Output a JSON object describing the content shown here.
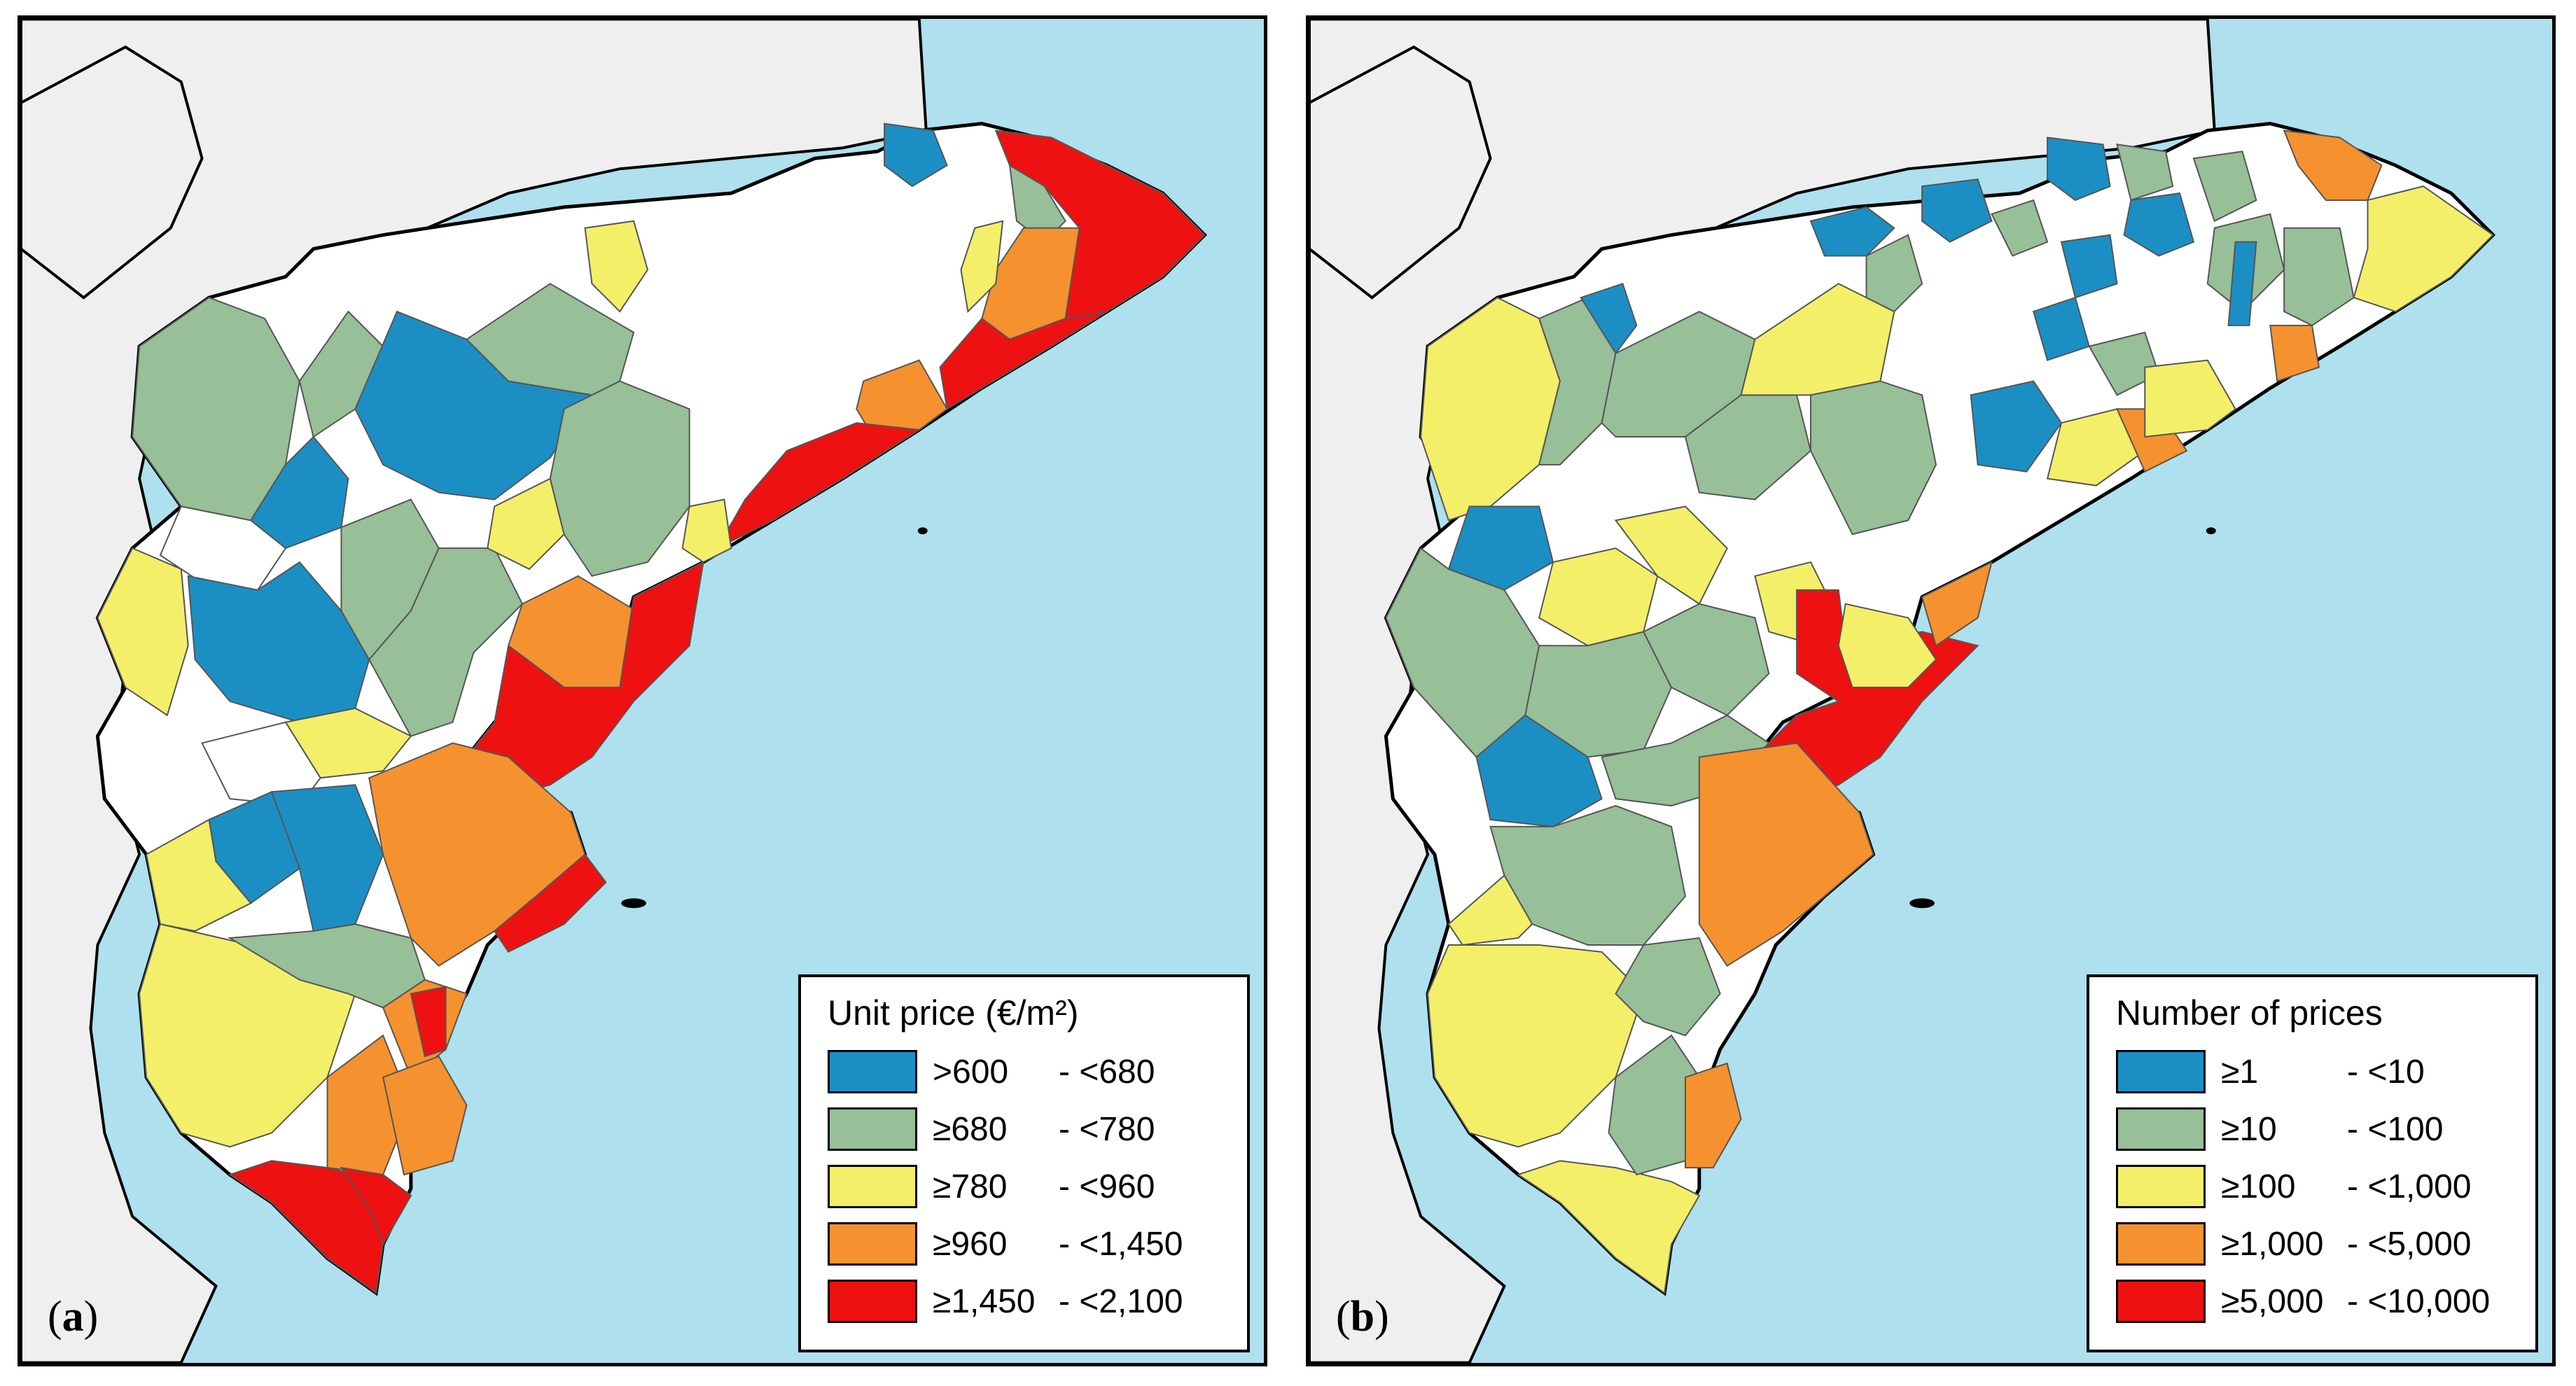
{
  "colors": {
    "sea": "#aee0ee",
    "neighbor": "#efefef",
    "nodata": "#ffffff",
    "border": "#000000"
  },
  "panels": [
    {
      "id": "a",
      "label_letter": "a",
      "legend": {
        "title": "Unit price (€/m²)",
        "items": [
          {
            "low": ">600",
            "high": "- <680",
            "color": "#1b8fc4"
          },
          {
            "low": "≥680",
            "high": "- <780",
            "color": "#97bf98"
          },
          {
            "low": "≥780",
            "high": "- <960",
            "color": "#f3ef69"
          },
          {
            "low": "≥960",
            "high": "- <1,450",
            "color": "#f5922f"
          },
          {
            "low": "≥1,450",
            "high": "- <2,100",
            "color": "#ee1111"
          }
        ]
      }
    },
    {
      "id": "b",
      "label_letter": "b",
      "legend": {
        "title": "Number of prices",
        "items": [
          {
            "low": "≥1",
            "high": "- <10",
            "color": "#1b8fc4"
          },
          {
            "low": "≥10",
            "high": "- <100",
            "color": "#97bf98"
          },
          {
            "low": "≥100",
            "high": "- <1,000",
            "color": "#f3ef69"
          },
          {
            "low": "≥1,000",
            "high": "- <5,000",
            "color": "#f5922f"
          },
          {
            "low": "≥5,000",
            "high": "- <10,000",
            "color": "#ee1111"
          }
        ]
      }
    }
  ]
}
